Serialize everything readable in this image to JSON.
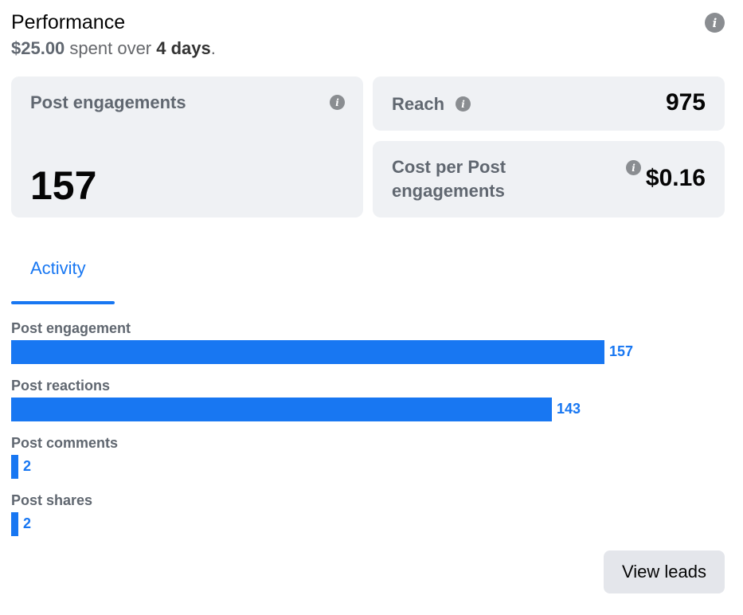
{
  "header": {
    "title": "Performance",
    "spent": "$25.00",
    "spent_text": " spent over ",
    "days": "4 days",
    "period": "."
  },
  "cards": {
    "engagements": {
      "label": "Post engagements",
      "value": "157"
    },
    "reach": {
      "label": "Reach",
      "value": "975"
    },
    "cost": {
      "label": "Cost per Post engagements",
      "value": "$0.16"
    }
  },
  "tabs": [
    {
      "label": "Activity",
      "selected": true
    }
  ],
  "activity": {
    "max": 157,
    "rows": [
      {
        "label": "Post engagement",
        "value": 157,
        "display": "157"
      },
      {
        "label": "Post reactions",
        "value": 143,
        "display": "143"
      },
      {
        "label": "Post comments",
        "value": 2,
        "display": "2"
      },
      {
        "label": "Post shares",
        "value": 2,
        "display": "2"
      }
    ]
  },
  "actions": {
    "view_leads": "View leads"
  },
  "colors": {
    "accent": "#1877f2",
    "card_bg": "#eff1f4",
    "muted": "#606770"
  },
  "icons": {
    "info": "info-icon"
  }
}
